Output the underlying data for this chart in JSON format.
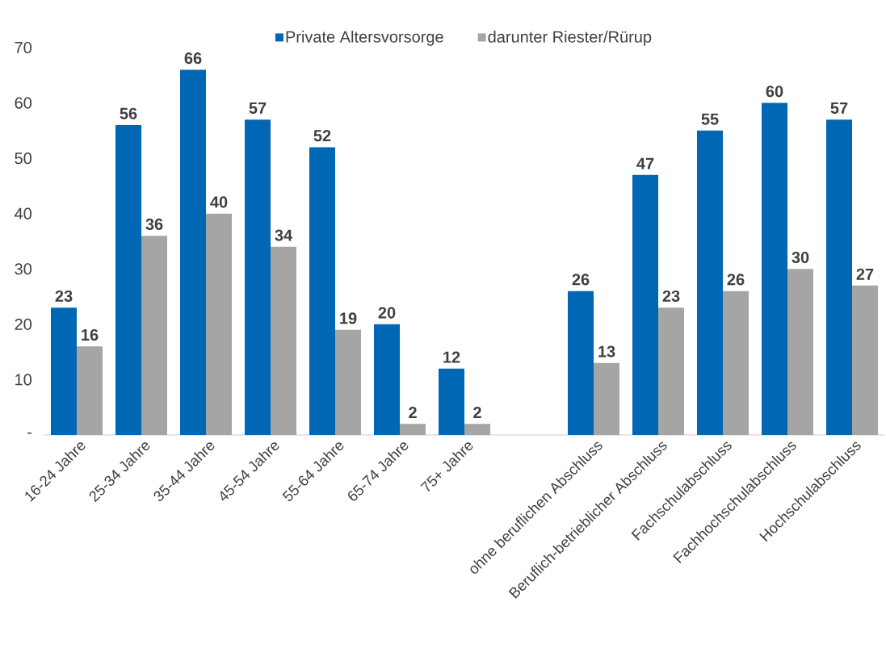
{
  "chart_data": {
    "type": "bar",
    "categories": [
      "16-24 Jahre",
      "25-34 Jahre",
      "35-44 Jahre",
      "45-54 Jahre",
      "55-64 Jahre",
      "65-74 Jahre",
      "75+ Jahre",
      null,
      "ohne beruflichen Abschluss",
      "Beruflich-betrieblicher Abschluss",
      "Fachschulabschluss",
      "Fachhochschulabschluss",
      "Hochschulabschluss"
    ],
    "series": [
      {
        "name": "Private Altersvorsorge",
        "color": "#0067b4",
        "values": [
          23,
          56,
          66,
          57,
          52,
          20,
          12,
          null,
          26,
          47,
          55,
          60,
          57
        ]
      },
      {
        "name": "darunter Riester/Rürup",
        "color": "#a5a5a5",
        "values": [
          16,
          36,
          40,
          34,
          19,
          2,
          2,
          null,
          13,
          23,
          26,
          30,
          27
        ]
      }
    ],
    "ylim": [
      0,
      70
    ],
    "yticks": [
      {
        "value": 0,
        "label": "-"
      },
      10,
      20,
      30,
      40,
      50,
      60,
      70
    ],
    "data_labels": true,
    "legend": "top",
    "grid": false
  }
}
